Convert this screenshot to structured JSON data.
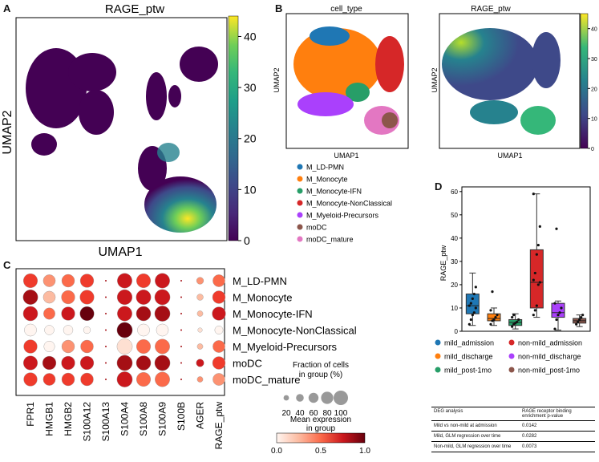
{
  "colors": {
    "viridis": [
      "#440154",
      "#482878",
      "#3e4989",
      "#31688e",
      "#26828e",
      "#1f9e89",
      "#35b779",
      "#6ece58",
      "#b5de2b",
      "#fde725"
    ],
    "reds": [
      "#fff5f0",
      "#fee0d2",
      "#fcbba1",
      "#fc9272",
      "#fb6a4a",
      "#ef3b2c",
      "#cb181d",
      "#a50f15",
      "#67000d"
    ],
    "cell_types": {
      "M_LD-PMN": "#1f77b4",
      "M_Monocyte": "#ff7f0e",
      "M_Monocyte-IFN": "#279e68",
      "M_Monocyte-NonClassical": "#d62728",
      "M_Myeloid-Precursors": "#aa40fc",
      "moDC": "#8c564b",
      "moDC_mature": "#e377c2"
    },
    "groups": {
      "mild_admission": "#1f77b4",
      "mild_discharge": "#ff7f0e",
      "mild_post-1mo": "#279e68",
      "non-mild_admission": "#d62728",
      "non-mild_discharge": "#aa40fc",
      "non-mild_post-1mo": "#8c564b"
    }
  },
  "panels": {
    "a": "A",
    "b": "B",
    "c": "C",
    "d": "D"
  },
  "chart_data": [
    {
      "id": "A",
      "type": "scatter",
      "title": "RAGE_ptw",
      "xlabel": "UMAP1",
      "ylabel": "UMAP2",
      "colorbar": {
        "ticks": [
          0,
          10,
          20,
          30,
          40
        ],
        "range": [
          0,
          44
        ]
      }
    },
    {
      "id": "B-left",
      "type": "scatter",
      "title": "cell_type",
      "xlabel": "UMAP1",
      "ylabel": "UMAP2",
      "legend": [
        "M_LD-PMN",
        "M_Monocyte",
        "M_Monocyte-IFN",
        "M_Monocyte-NonClassical",
        "M_Myeloid-Precursors",
        "moDC",
        "moDC_mature"
      ]
    },
    {
      "id": "B-right",
      "type": "scatter",
      "title": "RAGE_ptw",
      "xlabel": "UMAP1",
      "ylabel": "UMAP2",
      "colorbar": {
        "ticks": [
          0,
          10,
          20,
          30,
          40
        ],
        "range": [
          0,
          45
        ]
      }
    },
    {
      "id": "C",
      "type": "dotplot",
      "genes": [
        "FPR1",
        "HMGB1",
        "HMGB2",
        "S100A12",
        "S100A13",
        "S100A4",
        "S100A8",
        "S100A9",
        "S100B",
        "AGER",
        "RAGE_ptw"
      ],
      "cell_types": [
        "M_LD-PMN",
        "M_Monocyte",
        "M_Monocyte-IFN",
        "M_Monocyte-NonClassical",
        "M_Myeloid-Precursors",
        "moDC",
        "moDC_mature"
      ],
      "fraction_pct": [
        [
          85,
          70,
          75,
          80,
          5,
          90,
          85,
          90,
          2,
          30,
          70
        ],
        [
          90,
          70,
          80,
          85,
          5,
          92,
          90,
          95,
          2,
          25,
          75
        ],
        [
          88,
          65,
          80,
          85,
          5,
          90,
          88,
          95,
          2,
          20,
          80
        ],
        [
          70,
          50,
          50,
          30,
          5,
          95,
          70,
          70,
          2,
          10,
          40
        ],
        [
          80,
          60,
          75,
          75,
          5,
          95,
          85,
          90,
          2,
          20,
          70
        ],
        [
          85,
          80,
          80,
          80,
          5,
          95,
          88,
          95,
          3,
          35,
          75
        ],
        [
          80,
          70,
          75,
          75,
          5,
          95,
          85,
          90,
          2,
          20,
          70
        ]
      ],
      "mean_expression": [
        [
          0.6,
          0.4,
          0.5,
          0.6,
          0.9,
          0.7,
          0.65,
          0.7,
          0.9,
          0.4,
          0.5
        ],
        [
          0.9,
          0.3,
          0.5,
          0.6,
          0.9,
          0.7,
          0.8,
          0.8,
          0.9,
          0.3,
          0.65
        ],
        [
          0.8,
          0.45,
          0.8,
          0.95,
          0.9,
          0.7,
          0.9,
          0.9,
          0.9,
          0.3,
          0.75
        ],
        [
          0.05,
          0.05,
          0.05,
          0.05,
          0.9,
          0.95,
          0.05,
          0.05,
          0.9,
          0.1,
          0.05
        ],
        [
          0.6,
          0.05,
          0.4,
          0.5,
          0.9,
          0.1,
          0.55,
          0.55,
          0.9,
          0.3,
          0.45
        ],
        [
          0.8,
          0.9,
          0.75,
          0.7,
          0.9,
          0.85,
          0.85,
          0.85,
          0.9,
          0.7,
          0.6
        ],
        [
          0.6,
          0.65,
          0.6,
          0.6,
          0.9,
          0.7,
          0.5,
          0.55,
          0.9,
          0.4,
          0.4
        ]
      ],
      "size_legend": {
        "title": "Fraction of cells\nin group (%)",
        "values": [
          20,
          40,
          60,
          80,
          100
        ]
      },
      "color_legend": {
        "title": "Mean expression\nin group",
        "ticks": [
          "0.0",
          "0.5",
          "1.0"
        ]
      }
    },
    {
      "id": "D",
      "type": "box",
      "ylabel": "RAGE_ptw",
      "ylim": [
        0,
        62
      ],
      "yticks": [
        0,
        10,
        20,
        30,
        40,
        50,
        60
      ],
      "groups": [
        "mild_admission",
        "mild_discharge",
        "mild_post-1mo",
        "non-mild_admission",
        "non-mild_discharge",
        "non-mild_post-1mo"
      ],
      "boxes": [
        {
          "q1": 7.5,
          "median": 11,
          "q3": 16,
          "min": 2.5,
          "max": 25,
          "points": [
            3,
            5,
            7,
            8,
            10,
            11,
            12,
            14,
            16,
            19
          ]
        },
        {
          "q1": 4.5,
          "median": 5.5,
          "q3": 7.5,
          "min": 2.5,
          "max": 10,
          "points": [
            3,
            4.5,
            5,
            6,
            7,
            9,
            17
          ]
        },
        {
          "q1": 2.5,
          "median": 3.8,
          "q3": 5,
          "min": 1,
          "max": 7.5,
          "points": [
            2,
            3,
            3.5,
            4,
            5,
            6,
            7
          ]
        },
        {
          "q1": 10,
          "median": 21,
          "q3": 35,
          "min": 6,
          "max": 59,
          "points": [
            7,
            9,
            11,
            20,
            21,
            22,
            25,
            33,
            37,
            45,
            59
          ]
        },
        {
          "q1": 6,
          "median": 8,
          "q3": 12,
          "min": 0.5,
          "max": 13,
          "points": [
            1,
            5,
            7,
            8,
            10,
            12,
            44
          ]
        },
        {
          "q1": 3.5,
          "median": 4.5,
          "q3": 5.5,
          "min": 2,
          "max": 7,
          "points": [
            3,
            4,
            5,
            6,
            7
          ]
        }
      ]
    }
  ],
  "table": {
    "headers": [
      "DEG analysis",
      "RAGE receptor binding enrichment p-value"
    ],
    "rows": [
      [
        "Mild vs non-mild at admission",
        "0.0142"
      ],
      [
        "Mild, GLM regression over time",
        "0.0282"
      ],
      [
        "Non-mild, GLM regression over time",
        "0.0073"
      ]
    ]
  }
}
